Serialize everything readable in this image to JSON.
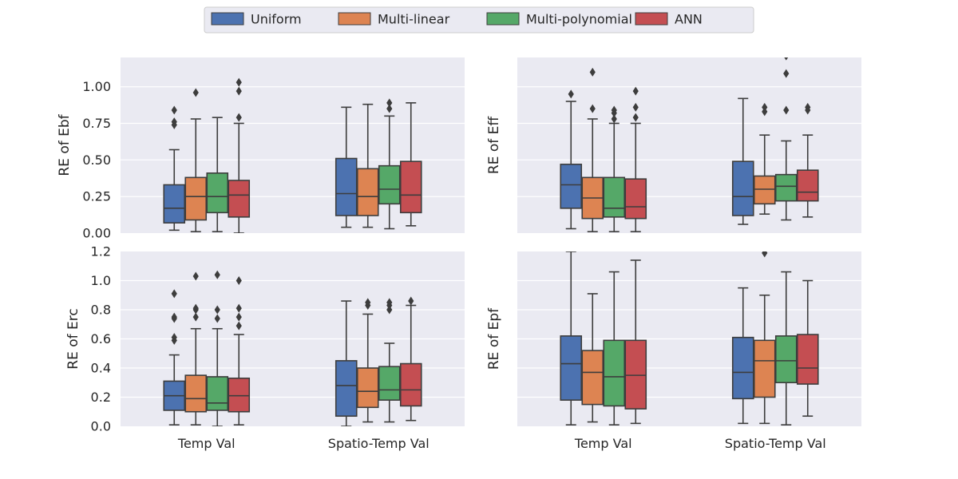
{
  "legend": {
    "placement": "top-center",
    "items": [
      {
        "name": "Uniform",
        "color": "#4c72b0"
      },
      {
        "name": "Multi-linear",
        "color": "#dd8452"
      },
      {
        "name": "Multi-polynomial",
        "color": "#55a868"
      },
      {
        "name": "ANN",
        "color": "#c44e52"
      }
    ]
  },
  "style": {
    "plot_background": "#eaeaf2",
    "grid_color": "#ffffff",
    "median_color": "#3d3d3d"
  },
  "chart_data": [
    {
      "type": "box",
      "panel": "top-left",
      "ylabel": "RE of Ebf",
      "categories": [
        "Temp Val",
        "Spatio-Temp Val"
      ],
      "ylim": [
        0,
        1.2
      ],
      "yticks": [
        "0.00",
        "0.25",
        "0.50",
        "0.75",
        "1.00"
      ],
      "ytick_values": [
        0,
        0.25,
        0.5,
        0.75,
        1.0
      ],
      "show_yticks": true,
      "show_xticks": false,
      "grid": true,
      "boxes": [
        [
          {
            "min": 0.02,
            "q1": 0.07,
            "median": 0.17,
            "q3": 0.33,
            "max": 0.57,
            "outliers": [
              0.74,
              0.76,
              0.84
            ]
          },
          {
            "min": 0.01,
            "q1": 0.09,
            "median": 0.25,
            "q3": 0.38,
            "max": 0.78,
            "outliers": [
              0.96
            ]
          },
          {
            "min": 0.01,
            "q1": 0.14,
            "median": 0.25,
            "q3": 0.41,
            "max": 0.79,
            "outliers": []
          },
          {
            "min": 0.0,
            "q1": 0.11,
            "median": 0.26,
            "q3": 0.36,
            "max": 0.75,
            "outliers": [
              0.79,
              0.97,
              1.03
            ]
          }
        ],
        [
          {
            "min": 0.04,
            "q1": 0.12,
            "median": 0.27,
            "q3": 0.51,
            "max": 0.86,
            "outliers": []
          },
          {
            "min": 0.04,
            "q1": 0.12,
            "median": 0.25,
            "q3": 0.44,
            "max": 0.88,
            "outliers": []
          },
          {
            "min": 0.03,
            "q1": 0.2,
            "median": 0.3,
            "q3": 0.46,
            "max": 0.8,
            "outliers": [
              0.85,
              0.89
            ]
          },
          {
            "min": 0.05,
            "q1": 0.14,
            "median": 0.26,
            "q3": 0.49,
            "max": 0.89,
            "outliers": []
          }
        ]
      ]
    },
    {
      "type": "box",
      "panel": "top-right",
      "ylabel": "RE of Eff",
      "categories": [
        "Temp Val",
        "Spatio-Temp Val"
      ],
      "ylim": [
        0,
        1.2
      ],
      "yticks": [],
      "ytick_values": [
        0,
        0.25,
        0.5,
        0.75,
        1.0
      ],
      "show_yticks": false,
      "show_xticks": false,
      "grid": true,
      "boxes": [
        [
          {
            "min": 0.03,
            "q1": 0.17,
            "median": 0.33,
            "q3": 0.47,
            "max": 0.9,
            "outliers": [
              0.95
            ]
          },
          {
            "min": 0.01,
            "q1": 0.1,
            "median": 0.24,
            "q3": 0.38,
            "max": 0.78,
            "outliers": [
              0.85,
              1.1
            ]
          },
          {
            "min": 0.01,
            "q1": 0.11,
            "median": 0.17,
            "q3": 0.38,
            "max": 0.75,
            "outliers": [
              0.78,
              0.82,
              0.84
            ]
          },
          {
            "min": 0.01,
            "q1": 0.1,
            "median": 0.18,
            "q3": 0.37,
            "max": 0.75,
            "outliers": [
              0.79,
              0.86,
              0.97
            ]
          }
        ],
        [
          {
            "min": 0.06,
            "q1": 0.12,
            "median": 0.25,
            "q3": 0.49,
            "max": 0.92,
            "outliers": []
          },
          {
            "min": 0.13,
            "q1": 0.2,
            "median": 0.3,
            "q3": 0.39,
            "max": 0.67,
            "outliers": [
              0.83,
              0.86
            ]
          },
          {
            "min": 0.09,
            "q1": 0.22,
            "median": 0.32,
            "q3": 0.4,
            "max": 0.63,
            "outliers": [
              0.84,
              1.09,
              1.21
            ]
          },
          {
            "min": 0.11,
            "q1": 0.22,
            "median": 0.28,
            "q3": 0.43,
            "max": 0.67,
            "outliers": [
              0.84,
              0.86
            ]
          }
        ]
      ]
    },
    {
      "type": "box",
      "panel": "bottom-left",
      "ylabel": "RE of Erc",
      "categories": [
        "Temp Val",
        "Spatio-Temp Val"
      ],
      "ylim": [
        0,
        1.2
      ],
      "yticks": [
        "0.0",
        "0.2",
        "0.4",
        "0.6",
        "0.8",
        "1.0",
        "1.2"
      ],
      "ytick_values": [
        0,
        0.2,
        0.4,
        0.6,
        0.8,
        1.0,
        1.2
      ],
      "show_yticks": true,
      "show_xticks": true,
      "grid": true,
      "boxes": [
        [
          {
            "min": 0.01,
            "q1": 0.11,
            "median": 0.21,
            "q3": 0.31,
            "max": 0.49,
            "outliers": [
              0.59,
              0.61,
              0.74,
              0.75,
              0.91
            ]
          },
          {
            "min": 0.01,
            "q1": 0.1,
            "median": 0.19,
            "q3": 0.35,
            "max": 0.67,
            "outliers": [
              0.75,
              0.8,
              0.81,
              1.03
            ]
          },
          {
            "min": 0.0,
            "q1": 0.11,
            "median": 0.16,
            "q3": 0.34,
            "max": 0.67,
            "outliers": [
              0.74,
              0.8,
              1.04
            ]
          },
          {
            "min": 0.01,
            "q1": 0.1,
            "median": 0.21,
            "q3": 0.33,
            "max": 0.63,
            "outliers": [
              0.69,
              0.75,
              0.81,
              1.0
            ]
          }
        ],
        [
          {
            "min": 0.0,
            "q1": 0.07,
            "median": 0.28,
            "q3": 0.45,
            "max": 0.86,
            "outliers": []
          },
          {
            "min": 0.03,
            "q1": 0.13,
            "median": 0.24,
            "q3": 0.4,
            "max": 0.77,
            "outliers": [
              0.83,
              0.85
            ]
          },
          {
            "min": 0.03,
            "q1": 0.18,
            "median": 0.25,
            "q3": 0.41,
            "max": 0.57,
            "outliers": [
              0.8,
              0.83,
              0.85
            ]
          },
          {
            "min": 0.04,
            "q1": 0.14,
            "median": 0.25,
            "q3": 0.43,
            "max": 0.83,
            "outliers": [
              0.86
            ]
          }
        ]
      ]
    },
    {
      "type": "box",
      "panel": "bottom-right",
      "ylabel": "RE of Epf",
      "categories": [
        "Temp Val",
        "Spatio-Temp Val"
      ],
      "ylim": [
        0,
        1.2
      ],
      "yticks": [],
      "ytick_values": [
        0,
        0.2,
        0.4,
        0.6,
        0.8,
        1.0,
        1.2
      ],
      "show_yticks": false,
      "show_xticks": true,
      "grid": true,
      "boxes": [
        [
          {
            "min": 0.01,
            "q1": 0.18,
            "median": 0.43,
            "q3": 0.62,
            "max": 1.2,
            "outliers": []
          },
          {
            "min": 0.03,
            "q1": 0.15,
            "median": 0.37,
            "q3": 0.52,
            "max": 0.91,
            "outliers": []
          },
          {
            "min": 0.01,
            "q1": 0.14,
            "median": 0.34,
            "q3": 0.59,
            "max": 1.06,
            "outliers": []
          },
          {
            "min": 0.02,
            "q1": 0.12,
            "median": 0.35,
            "q3": 0.59,
            "max": 1.14,
            "outliers": []
          }
        ],
        [
          {
            "min": 0.02,
            "q1": 0.19,
            "median": 0.37,
            "q3": 0.61,
            "max": 0.95,
            "outliers": []
          },
          {
            "min": 0.02,
            "q1": 0.2,
            "median": 0.45,
            "q3": 0.59,
            "max": 0.9,
            "outliers": [
              1.19
            ]
          },
          {
            "min": 0.01,
            "q1": 0.3,
            "median": 0.45,
            "q3": 0.62,
            "max": 1.06,
            "outliers": []
          },
          {
            "min": 0.07,
            "q1": 0.29,
            "median": 0.4,
            "q3": 0.63,
            "max": 1.0,
            "outliers": []
          }
        ]
      ]
    }
  ]
}
